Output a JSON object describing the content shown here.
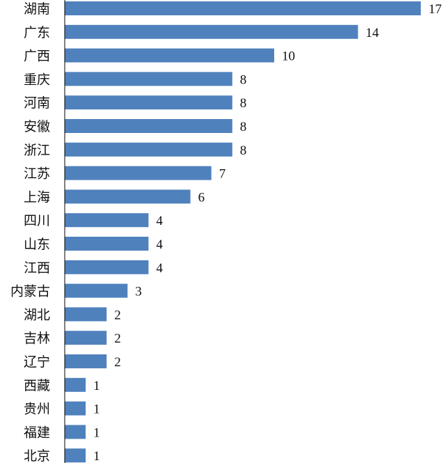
{
  "chart_data": {
    "type": "bar",
    "orientation": "horizontal",
    "categories": [
      "湖南",
      "广东",
      "广西",
      "重庆",
      "河南",
      "安徽",
      "浙江",
      "江苏",
      "上海",
      "四川",
      "山东",
      "江西",
      "内蒙古",
      "湖北",
      "吉林",
      "辽宁",
      "西藏",
      "贵州",
      "福建",
      "北京"
    ],
    "values": [
      17,
      14,
      10,
      8,
      8,
      8,
      8,
      7,
      6,
      4,
      4,
      4,
      3,
      2,
      2,
      2,
      1,
      1,
      1,
      1
    ],
    "title": "",
    "xlabel": "",
    "ylabel": "",
    "xlim": [
      0,
      17
    ],
    "grid": false,
    "legend": "none",
    "data_labels": true,
    "bar_color": "#4f81bd"
  }
}
